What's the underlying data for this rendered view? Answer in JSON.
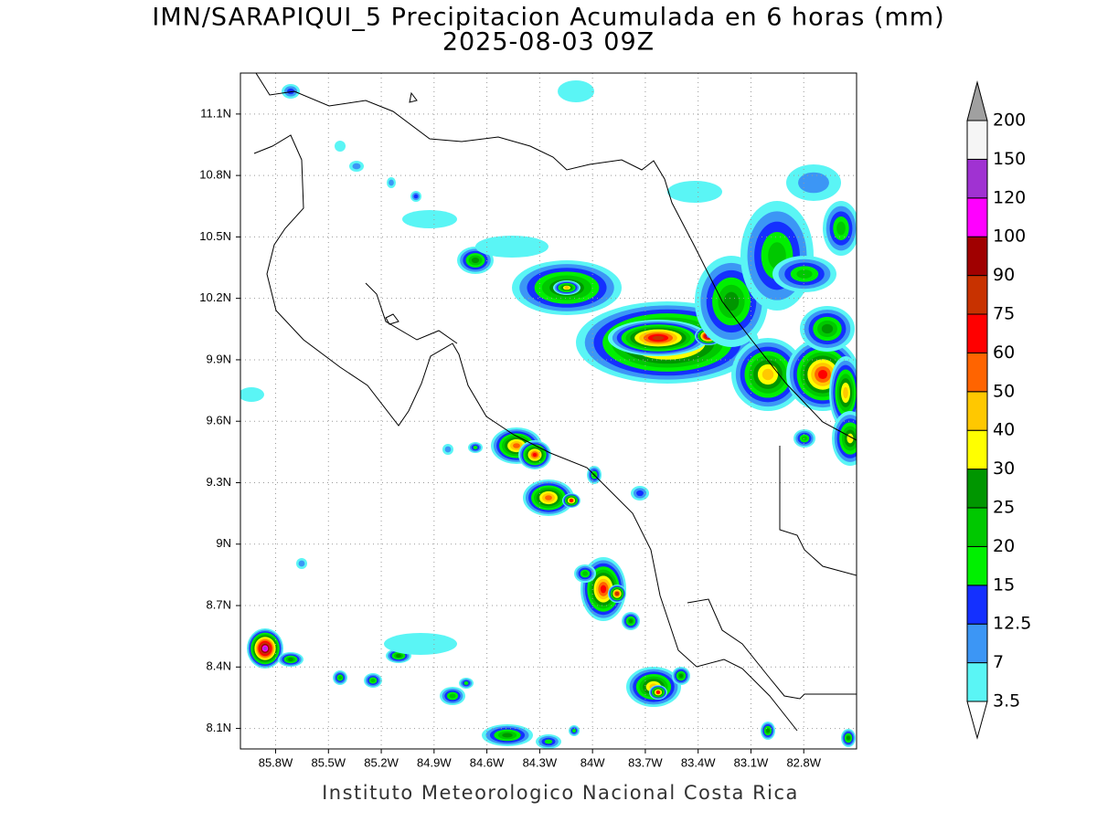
{
  "map": {
    "title": "IMN/SARAPIQUI_5 Precipitacion Acumulada en 6 horas (mm)",
    "subtitle": "2025-08-03 09Z",
    "footer": "Instituto Meteorologico Nacional Costa Rica",
    "xlim": [
      -86.0,
      -82.5
    ],
    "ylim": [
      8.0,
      11.3
    ],
    "grid": true,
    "xticks": [
      {
        "value": -85.8,
        "label": "85.8W"
      },
      {
        "value": -85.5,
        "label": "85.5W"
      },
      {
        "value": -85.2,
        "label": "85.2W"
      },
      {
        "value": -84.9,
        "label": "84.9W"
      },
      {
        "value": -84.6,
        "label": "84.6W"
      },
      {
        "value": -84.3,
        "label": "84.3W"
      },
      {
        "value": -84.0,
        "label": "84W"
      },
      {
        "value": -83.7,
        "label": "83.7W"
      },
      {
        "value": -83.4,
        "label": "83.4W"
      },
      {
        "value": -83.1,
        "label": "83.1W"
      },
      {
        "value": -82.8,
        "label": "82.8W"
      }
    ],
    "yticks": [
      {
        "value": 8.1,
        "label": "8.1N"
      },
      {
        "value": 8.4,
        "label": "8.4N"
      },
      {
        "value": 8.7,
        "label": "8.7N"
      },
      {
        "value": 9.0,
        "label": "9N"
      },
      {
        "value": 9.3,
        "label": "9.3N"
      },
      {
        "value": 9.6,
        "label": "9.6N"
      },
      {
        "value": 9.9,
        "label": "9.9N"
      },
      {
        "value": 10.2,
        "label": "10.2N"
      },
      {
        "value": 10.5,
        "label": "10.5N"
      },
      {
        "value": 10.8,
        "label": "10.8N"
      },
      {
        "value": 11.1,
        "label": "11.1N"
      }
    ],
    "colorbar": {
      "levels": [
        3.5,
        7,
        12.5,
        15,
        20,
        25,
        30,
        40,
        50,
        60,
        75,
        90,
        100,
        120,
        150,
        200
      ],
      "colors": [
        "#5af5f5",
        "#3c96f5",
        "#1430ff",
        "#00f000",
        "#00c800",
        "#009600",
        "#ffff00",
        "#ffc800",
        "#ff6400",
        "#ff0000",
        "#c83200",
        "#a00000",
        "#ff00ff",
        "#a032d2",
        "#f5f5f5"
      ],
      "under_color": "#ffffff",
      "over_color": "#a0a0a0"
    }
  }
}
